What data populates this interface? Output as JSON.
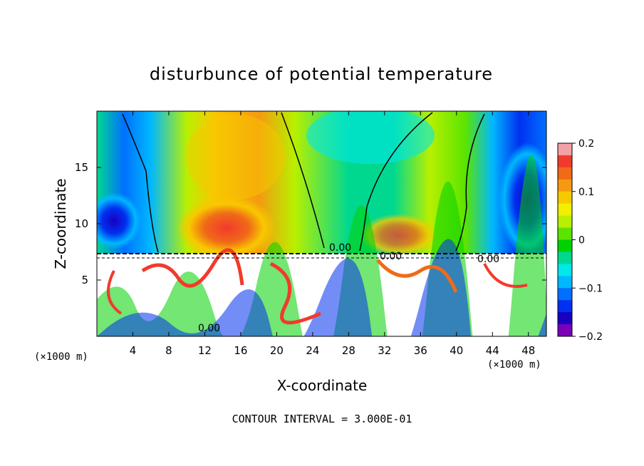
{
  "chart_data": {
    "type": "heatmap",
    "title": "disturbunce of potential temperature",
    "xlabel": "X-coordinate",
    "ylabel": "Z-coordinate",
    "x_unit_left": "(×1000 m)",
    "x_unit_right": "(×1000 m)",
    "xlim": [
      0,
      50
    ],
    "ylim": [
      0,
      20
    ],
    "x_ticks": [
      4,
      8,
      12,
      16,
      20,
      24,
      28,
      32,
      36,
      40,
      44,
      48
    ],
    "y_ticks": [
      5,
      10,
      15
    ],
    "colorbar": {
      "ticks": [
        "0.2",
        "0.1",
        "0",
        "−0.1",
        "−0.2"
      ],
      "range": [
        -0.2,
        0.2
      ],
      "colors": [
        "#f4a0a8",
        "#f23a2c",
        "#f06a18",
        "#f59a10",
        "#f8c800",
        "#f0f000",
        "#b8f000",
        "#5be400",
        "#00d200",
        "#00d890",
        "#00e8e8",
        "#00b8ff",
        "#0070ff",
        "#0030f0",
        "#1800c0",
        "#7a00b8"
      ]
    },
    "contour_labels": [
      "0.00",
      "0.00",
      "0.00",
      "0.00"
    ],
    "contour_interval": "CONTOUR INTERVAL = 3.000E-01",
    "grid": false
  }
}
